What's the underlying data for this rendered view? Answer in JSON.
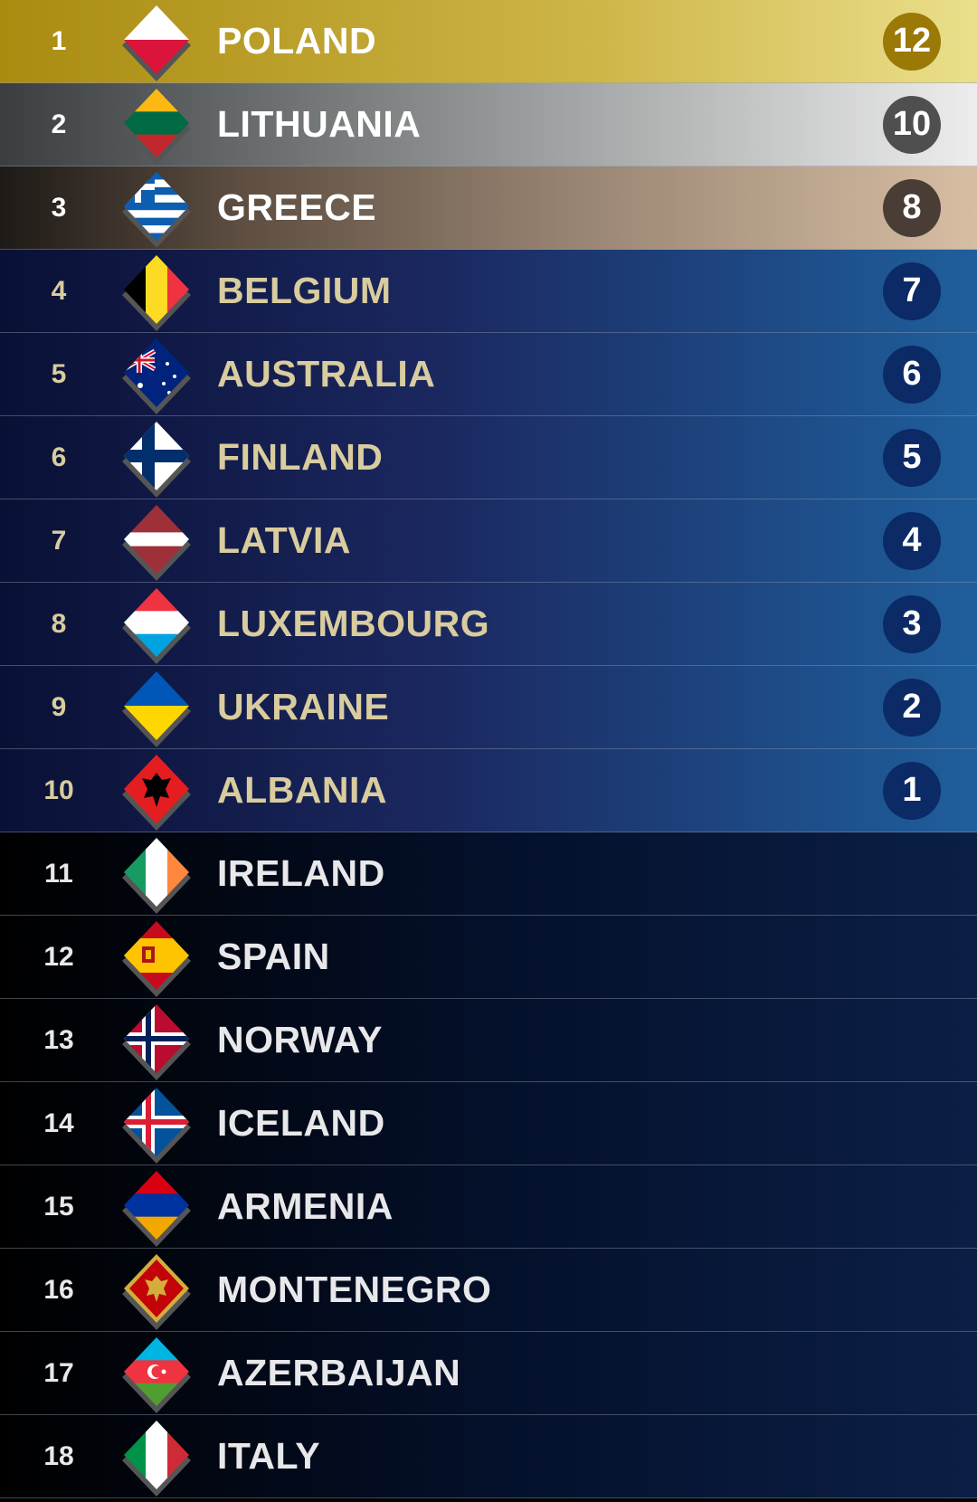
{
  "scoreboard": {
    "rows": [
      {
        "rank": "1",
        "country": "POLAND",
        "points": "12",
        "tier": "gold",
        "flag": {
          "dir": "h",
          "colors": [
            "#ffffff",
            "#dc143c"
          ]
        }
      },
      {
        "rank": "2",
        "country": "LITHUANIA",
        "points": "10",
        "tier": "silver",
        "flag": {
          "dir": "h",
          "colors": [
            "#fdb913",
            "#006a44",
            "#c1272d"
          ]
        }
      },
      {
        "rank": "3",
        "country": "GREECE",
        "points": "8",
        "tier": "bronze",
        "flag": {
          "dir": "h",
          "colors": [
            "#0d5eaf",
            "#ffffff",
            "#0d5eaf",
            "#ffffff",
            "#0d5eaf",
            "#ffffff",
            "#0d5eaf",
            "#ffffff",
            "#0d5eaf"
          ],
          "canton": "greek-cross"
        }
      },
      {
        "rank": "4",
        "country": "BELGIUM",
        "points": "7",
        "tier": "blue",
        "flag": {
          "dir": "v",
          "colors": [
            "#000000",
            "#fdda24",
            "#ef3340"
          ]
        }
      },
      {
        "rank": "5",
        "country": "AUSTRALIA",
        "points": "6",
        "tier": "blue",
        "flag": {
          "dir": "h",
          "colors": [
            "#00247d"
          ],
          "canton": "union-jack-stars"
        }
      },
      {
        "rank": "6",
        "country": "FINLAND",
        "points": "5",
        "tier": "blue",
        "flag": {
          "dir": "h",
          "colors": [
            "#ffffff"
          ],
          "cross": [
            "#002f6c"
          ]
        }
      },
      {
        "rank": "7",
        "country": "LATVIA",
        "points": "4",
        "tier": "blue",
        "flag": {
          "dir": "h",
          "colors": [
            "#9e3039",
            "#9e3039",
            "#ffffff",
            "#9e3039",
            "#9e3039"
          ]
        }
      },
      {
        "rank": "8",
        "country": "LUXEMBOURG",
        "points": "3",
        "tier": "blue",
        "flag": {
          "dir": "h",
          "colors": [
            "#ef3340",
            "#ffffff",
            "#00a3e0"
          ]
        }
      },
      {
        "rank": "9",
        "country": "UKRAINE",
        "points": "2",
        "tier": "blue",
        "flag": {
          "dir": "h",
          "colors": [
            "#0057b7",
            "#ffd700"
          ]
        }
      },
      {
        "rank": "10",
        "country": "ALBANIA",
        "points": "1",
        "tier": "blue",
        "flag": {
          "dir": "h",
          "colors": [
            "#e41e20"
          ],
          "emblem": "eagle"
        }
      },
      {
        "rank": "11",
        "country": "IRELAND",
        "points": "",
        "tier": "dark",
        "flag": {
          "dir": "v",
          "colors": [
            "#169b62",
            "#ffffff",
            "#ff883e"
          ]
        }
      },
      {
        "rank": "12",
        "country": "SPAIN",
        "points": "",
        "tier": "dark",
        "flag": {
          "dir": "h",
          "colors": [
            "#c60b1e",
            "#ffc400",
            "#ffc400",
            "#c60b1e"
          ],
          "emblem": "coat-of-arms"
        }
      },
      {
        "rank": "13",
        "country": "NORWAY",
        "points": "",
        "tier": "dark",
        "flag": {
          "dir": "h",
          "colors": [
            "#ba0c2f"
          ],
          "cross": [
            "#ffffff",
            "#00205b"
          ]
        }
      },
      {
        "rank": "14",
        "country": "ICELAND",
        "points": "",
        "tier": "dark",
        "flag": {
          "dir": "h",
          "colors": [
            "#02529c"
          ],
          "cross": [
            "#ffffff",
            "#dc1e35"
          ]
        }
      },
      {
        "rank": "15",
        "country": "ARMENIA",
        "points": "",
        "tier": "dark",
        "flag": {
          "dir": "h",
          "colors": [
            "#d90012",
            "#0033a0",
            "#f2a800"
          ]
        }
      },
      {
        "rank": "16",
        "country": "MONTENEGRO",
        "points": "",
        "tier": "dark",
        "flag": {
          "dir": "h",
          "colors": [
            "#d3ae3b"
          ],
          "inner": "#c40308",
          "emblem": "eagle-gold"
        }
      },
      {
        "rank": "17",
        "country": "AZERBAIJAN",
        "points": "",
        "tier": "dark",
        "flag": {
          "dir": "h",
          "colors": [
            "#00b5e2",
            "#ef3340",
            "#509e2f"
          ],
          "emblem": "crescent"
        }
      },
      {
        "rank": "18",
        "country": "ITALY",
        "points": "",
        "tier": "dark",
        "flag": {
          "dir": "v",
          "colors": [
            "#009246",
            "#ffffff",
            "#ce2b37"
          ]
        }
      }
    ]
  }
}
